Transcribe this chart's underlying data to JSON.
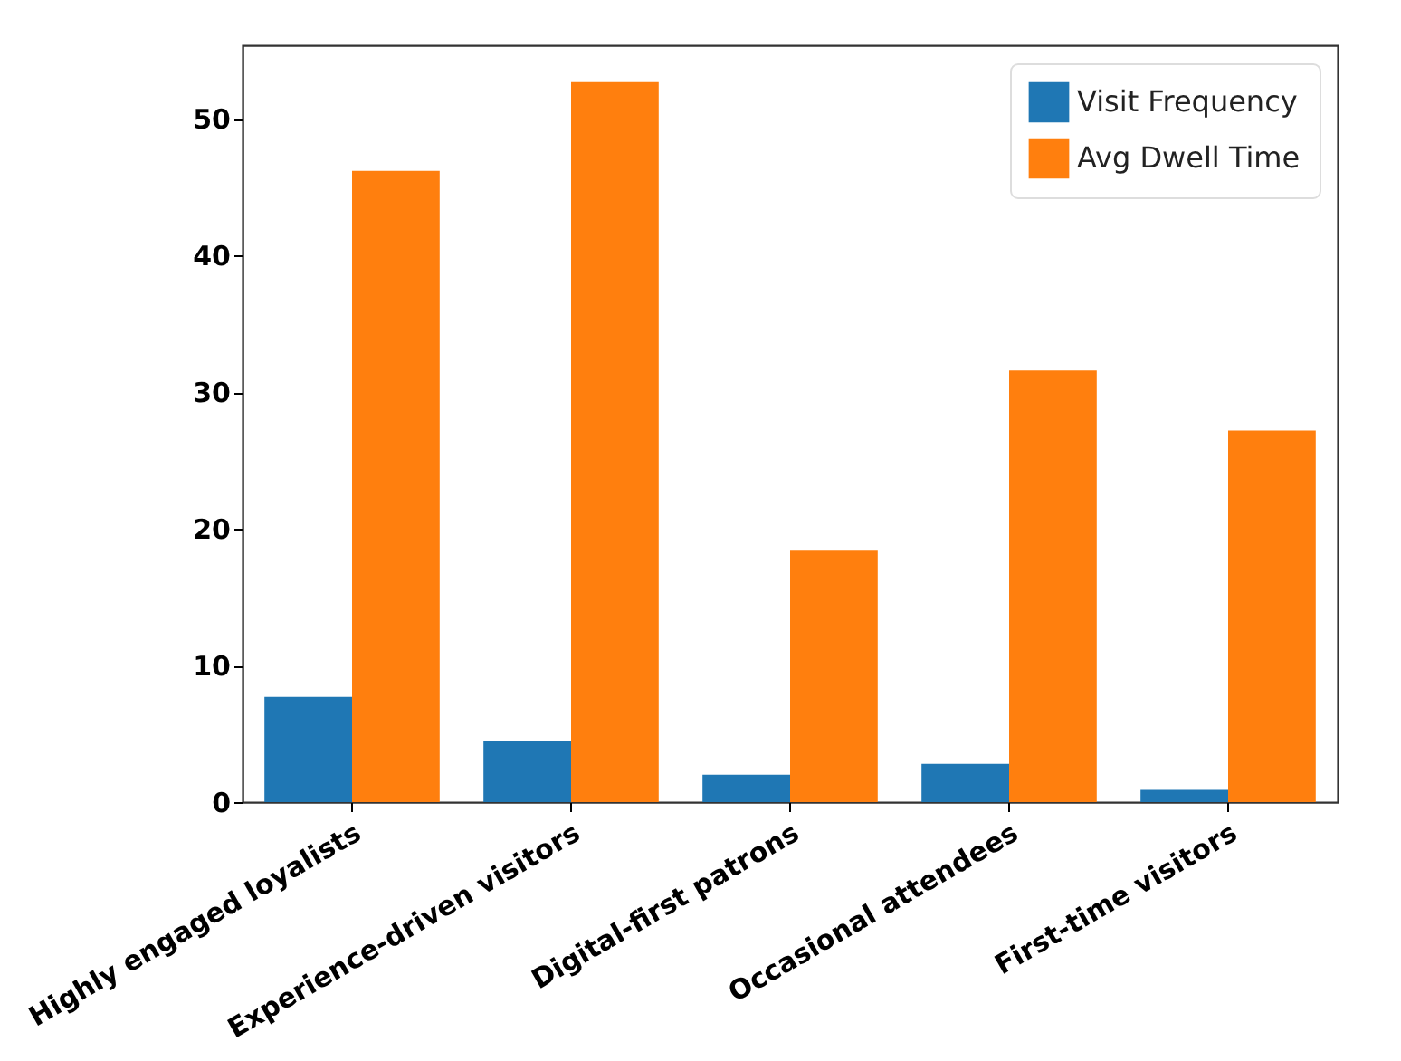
{
  "chart_data": {
    "type": "bar",
    "categories": [
      "Highly engaged loyalists",
      "Experience-driven visitors",
      "Digital-first patrons",
      "Occasional attendees",
      "First-time visitors"
    ],
    "series": [
      {
        "name": "Visit Frequency",
        "color": "#1f77b4",
        "values": [
          7.7,
          4.5,
          2.0,
          2.8,
          0.9
        ]
      },
      {
        "name": "Avg Dwell Time",
        "color": "#ff7f0e",
        "values": [
          46.2,
          52.7,
          18.4,
          31.6,
          27.2
        ]
      }
    ],
    "ylim": [
      0,
      55.4
    ],
    "yticks": [
      0,
      10,
      20,
      30,
      40,
      50
    ],
    "legend": "top right"
  }
}
